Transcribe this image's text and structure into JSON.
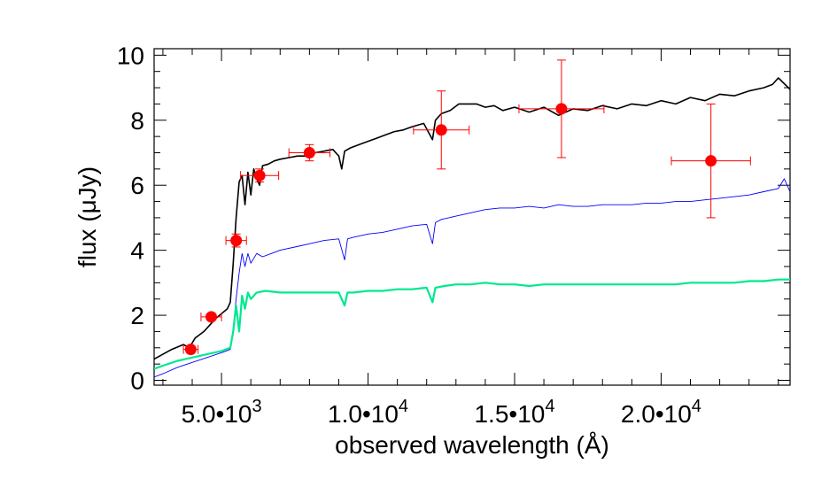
{
  "chart_data": {
    "type": "line",
    "xlabel": "observed wavelength (Å)",
    "ylabel": "flux (μJy)",
    "xlim": [
      2700,
      24400
    ],
    "ylim": [
      -0.15,
      10.2
    ],
    "grid": false,
    "legend": "none",
    "x_ticks": [
      {
        "value": 5000,
        "mantissa": "5.0•10",
        "exp": "3"
      },
      {
        "value": 10000,
        "mantissa": "1.0•10",
        "exp": "4"
      },
      {
        "value": 15000,
        "mantissa": "1.5•10",
        "exp": "4"
      },
      {
        "value": 20000,
        "mantissa": "2.0•10",
        "exp": "4"
      }
    ],
    "x_minor_step": 1000,
    "y_ticks": [
      {
        "value": 0,
        "label": "0"
      },
      {
        "value": 2,
        "label": "2"
      },
      {
        "value": 4,
        "label": "4"
      },
      {
        "value": 6,
        "label": "6"
      },
      {
        "value": 8,
        "label": "8"
      },
      {
        "value": 10,
        "label": "10"
      }
    ],
    "y_minor_step": 0.5,
    "series": [
      {
        "kind": "line",
        "color": "#000000",
        "width": 1.6,
        "x": [
          2700,
          3000,
          3300,
          3700,
          3900,
          4100,
          4400,
          4600,
          4800,
          5000,
          5200,
          5300,
          5400,
          5500,
          5600,
          5700,
          5800,
          5900,
          6000,
          6100,
          6200,
          6300,
          6400,
          6600,
          6800,
          7000,
          7300,
          7600,
          7900,
          8200,
          8500,
          8800,
          9000,
          9100,
          9200,
          9400,
          9700,
          10000,
          10300,
          10600,
          10900,
          11200,
          11500,
          11900,
          12200,
          12300,
          12500,
          12800,
          13100,
          13400,
          13700,
          14000,
          14300,
          14600,
          15000,
          15500,
          16000,
          16500,
          17000,
          17500,
          18000,
          18500,
          19000,
          19500,
          20000,
          20500,
          21000,
          21500,
          22000,
          22500,
          23000,
          23500,
          23800,
          24000,
          24400
        ],
        "y": [
          0.65,
          0.8,
          0.95,
          1.1,
          1.0,
          1.3,
          1.5,
          1.7,
          1.9,
          2.05,
          2.2,
          2.4,
          3.6,
          5.0,
          6.1,
          6.3,
          5.4,
          6.4,
          5.7,
          6.5,
          6.2,
          6.0,
          6.6,
          6.65,
          6.75,
          6.8,
          6.85,
          6.9,
          6.9,
          7.0,
          7.05,
          7.1,
          6.9,
          6.5,
          7.05,
          7.15,
          7.25,
          7.35,
          7.45,
          7.55,
          7.65,
          7.7,
          7.8,
          7.9,
          7.4,
          8.0,
          8.2,
          8.3,
          8.5,
          8.5,
          8.5,
          8.4,
          8.45,
          8.3,
          8.4,
          8.25,
          8.4,
          8.15,
          8.35,
          8.3,
          8.45,
          8.35,
          8.5,
          8.45,
          8.6,
          8.5,
          8.7,
          8.6,
          8.8,
          8.75,
          8.9,
          9.0,
          9.1,
          9.3,
          8.95
        ]
      },
      {
        "kind": "line",
        "color": "#0000ff",
        "width": 0.9,
        "x": [
          2700,
          3000,
          3500,
          4000,
          4500,
          5000,
          5300,
          5400,
          5500,
          5600,
          5700,
          5800,
          5900,
          6000,
          6200,
          6400,
          6700,
          7000,
          7500,
          8000,
          8500,
          9000,
          9200,
          9300,
          9500,
          10000,
          10500,
          11000,
          11500,
          12000,
          12200,
          12300,
          12500,
          13000,
          13500,
          14000,
          14500,
          15000,
          15500,
          16000,
          16500,
          17000,
          17500,
          18000,
          18500,
          19000,
          19500,
          20000,
          20500,
          21000,
          21500,
          22000,
          22500,
          23000,
          23500,
          24000,
          24200,
          24400
        ],
        "y": [
          0.1,
          0.2,
          0.4,
          0.55,
          0.7,
          0.85,
          0.95,
          1.6,
          2.5,
          3.3,
          3.9,
          3.5,
          3.9,
          3.6,
          3.9,
          3.8,
          3.9,
          4.0,
          4.1,
          4.2,
          4.3,
          4.35,
          3.7,
          4.35,
          4.4,
          4.5,
          4.55,
          4.65,
          4.75,
          4.8,
          4.2,
          4.85,
          4.95,
          5.05,
          5.15,
          5.25,
          5.3,
          5.3,
          5.35,
          5.3,
          5.4,
          5.35,
          5.35,
          5.4,
          5.4,
          5.4,
          5.45,
          5.45,
          5.5,
          5.5,
          5.55,
          5.6,
          5.65,
          5.7,
          5.8,
          5.9,
          6.2,
          5.8
        ]
      },
      {
        "kind": "line",
        "color": "#00e890",
        "width": 2.2,
        "x": [
          2700,
          3000,
          3500,
          4000,
          4500,
          5000,
          5300,
          5400,
          5500,
          5600,
          5700,
          5800,
          5900,
          6000,
          6200,
          6500,
          7000,
          7500,
          8000,
          8500,
          9000,
          9200,
          9300,
          9500,
          10000,
          10500,
          11000,
          11500,
          12000,
          12200,
          12300,
          12600,
          13000,
          13500,
          14000,
          14500,
          15000,
          15500,
          16000,
          16500,
          17000,
          17500,
          18000,
          18500,
          19000,
          19500,
          20000,
          20500,
          21000,
          21500,
          22000,
          22500,
          23000,
          23500,
          24000,
          24400
        ],
        "y": [
          0.35,
          0.45,
          0.6,
          0.7,
          0.8,
          0.9,
          1.0,
          1.5,
          2.3,
          1.5,
          2.6,
          2.2,
          2.7,
          2.5,
          2.7,
          2.75,
          2.7,
          2.7,
          2.7,
          2.7,
          2.7,
          2.3,
          2.7,
          2.7,
          2.75,
          2.75,
          2.8,
          2.8,
          2.85,
          2.4,
          2.85,
          2.9,
          2.95,
          2.95,
          3.0,
          2.95,
          2.95,
          2.9,
          2.95,
          2.95,
          2.95,
          2.95,
          2.95,
          2.95,
          2.95,
          2.95,
          2.95,
          2.95,
          3.0,
          3.0,
          3.0,
          3.0,
          3.05,
          3.05,
          3.1,
          3.1
        ]
      }
    ],
    "points": {
      "color": "#ff0000",
      "x": [
        3950,
        4650,
        5500,
        6300,
        8000,
        12500,
        16600,
        21700
      ],
      "y": [
        0.95,
        1.95,
        4.3,
        6.3,
        7.0,
        7.7,
        8.35,
        6.75
      ],
      "xerr": [
        250,
        350,
        350,
        650,
        700,
        950,
        1450,
        1350
      ],
      "yerr": [
        0.1,
        0.1,
        0.2,
        0.2,
        0.25,
        1.2,
        1.5,
        1.75
      ]
    }
  }
}
